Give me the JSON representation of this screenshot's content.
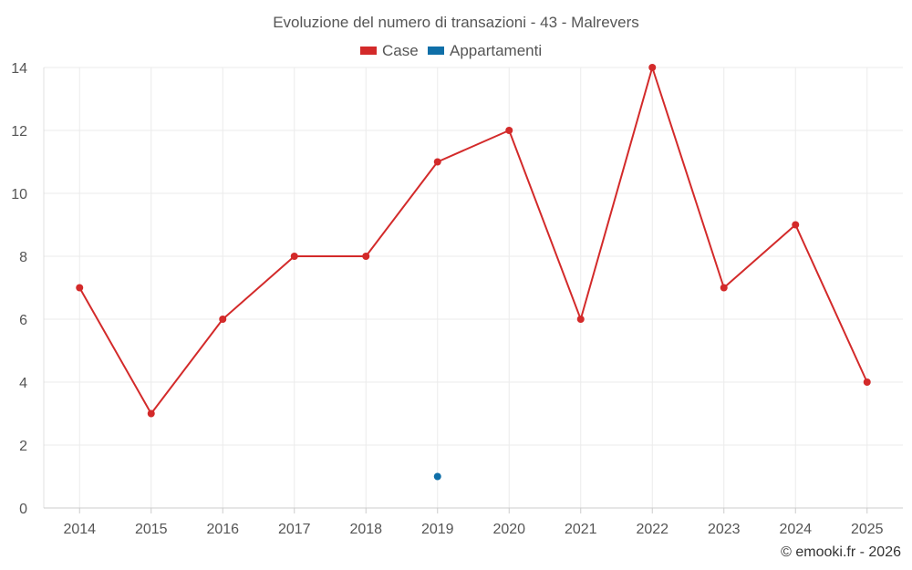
{
  "chart_data": {
    "type": "line",
    "title": "Evoluzione del numero di transazioni - 43 - Malrevers",
    "categories": [
      "2014",
      "2015",
      "2016",
      "2017",
      "2018",
      "2019",
      "2020",
      "2021",
      "2022",
      "2023",
      "2024",
      "2025"
    ],
    "series": [
      {
        "name": "Case",
        "color": "#d32a2a",
        "values": [
          7,
          3,
          6,
          8,
          8,
          11,
          12,
          6,
          14,
          7,
          9,
          4
        ]
      },
      {
        "name": "Appartamenti",
        "color": "#0f6fa8",
        "values": [
          null,
          null,
          null,
          null,
          null,
          1,
          null,
          null,
          null,
          null,
          null,
          null
        ]
      }
    ],
    "y_ticks": [
      "0",
      "2",
      "4",
      "6",
      "8",
      "10",
      "12",
      "14"
    ],
    "ylim": [
      0,
      14
    ],
    "grid": true,
    "legend_position": "top-center",
    "copyright": "© emooki.fr - 2026"
  }
}
